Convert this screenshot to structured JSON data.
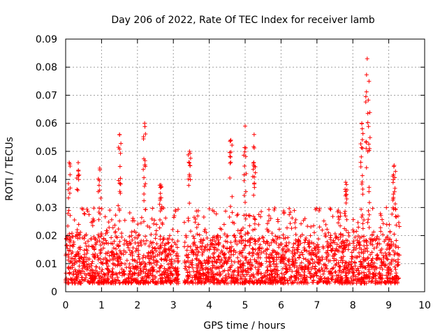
{
  "chart_data": {
    "type": "scatter",
    "title": "Day 206 of 2022, Rate Of TEC Index for receiver lamb",
    "xlabel": "GPS time / hours",
    "ylabel": "ROTI / TECUs",
    "xlim": [
      0,
      10
    ],
    "ylim": [
      0,
      0.09
    ],
    "xticks": [
      "0",
      "1",
      "2",
      "3",
      "4",
      "5",
      "6",
      "7",
      "8",
      "9",
      "10"
    ],
    "yticks": [
      "0",
      "0.01",
      "0.02",
      "0.03",
      "0.04",
      "0.05",
      "0.06",
      "0.07",
      "0.08",
      "0.09"
    ],
    "grid": true,
    "marker": "+",
    "series_color": "#ff0000",
    "data_extent_hours": [
      0,
      9.3
    ],
    "gap_hours": [
      3.15,
      3.3
    ],
    "typical_band": [
      0.003,
      0.02
    ],
    "peaks": [
      {
        "x": 0.1,
        "y": 0.046
      },
      {
        "x": 0.35,
        "y": 0.046
      },
      {
        "x": 0.95,
        "y": 0.044
      },
      {
        "x": 1.5,
        "y": 0.056
      },
      {
        "x": 2.2,
        "y": 0.06
      },
      {
        "x": 2.65,
        "y": 0.038
      },
      {
        "x": 3.45,
        "y": 0.05
      },
      {
        "x": 4.6,
        "y": 0.054
      },
      {
        "x": 5.0,
        "y": 0.059
      },
      {
        "x": 5.25,
        "y": 0.056
      },
      {
        "x": 7.8,
        "y": 0.039
      },
      {
        "x": 8.25,
        "y": 0.06
      },
      {
        "x": 8.4,
        "y": 0.083
      },
      {
        "x": 8.45,
        "y": 0.075
      },
      {
        "x": 9.15,
        "y": 0.045
      }
    ]
  }
}
